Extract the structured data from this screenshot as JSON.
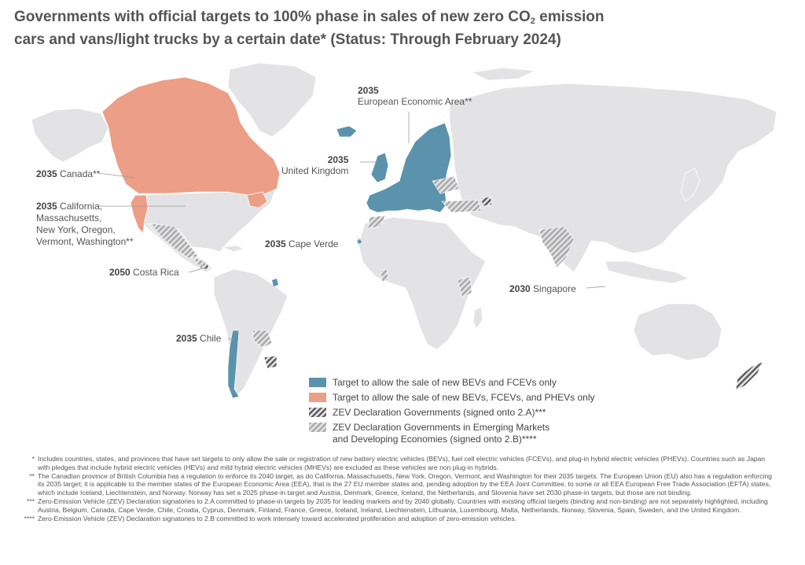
{
  "title": {
    "line1_a": "Governments with official targets to 100% phase in sales of new zero CO",
    "line1_sub": "2",
    "line1_b": " emission",
    "line2": "cars and vans/light trucks by a certain date* (Status: Through February 2024)"
  },
  "colors": {
    "land": "#e3e3e6",
    "bev_fcev": "#5b93ac",
    "phev": "#ec9e86",
    "zev_2a": "#5a5a5a",
    "zev_2b": "#a8a8a8"
  },
  "labels": {
    "eea": {
      "year": "2035",
      "name": "European Economic Area**"
    },
    "uk": {
      "year": "2035",
      "name": "United Kingdom"
    },
    "canada": {
      "year": "2035",
      "name": "Canada**"
    },
    "us_states": {
      "year": "2035",
      "line1": "California,",
      "line2": "Massachusetts,",
      "line3": "New York, Oregon,",
      "line4": "Vermont, Washington**"
    },
    "cape_verde": {
      "year": "2035",
      "name": "Cape Verde"
    },
    "costa_rica": {
      "year": "2050",
      "name": "Costa Rica"
    },
    "singapore": {
      "year": "2030",
      "name": "Singapore"
    },
    "chile": {
      "year": "2035",
      "name": "Chile"
    }
  },
  "legend": [
    {
      "label": "Target to allow the sale of new BEVs and FCEVs only",
      "icon": "solid-blue"
    },
    {
      "label": "Target to allow the sale of new BEVs, FCEVs, and PHEVs only",
      "icon": "solid-salmon"
    },
    {
      "label": "ZEV Declaration Governments (signed onto 2.A)***",
      "icon": "hatch-dark"
    },
    {
      "label": "ZEV Declaration Governments in Emerging Markets",
      "label2": "and Developing Economies (signed onto 2.B)****",
      "icon": "hatch-light"
    }
  ],
  "footnotes": [
    {
      "mark": "*",
      "text": "Includes countries, states, and provinces that have set targets to only allow the sale or registration of new battery electric vehicles (BEVs), fuel cell electric vehicles (FCEVs), and plug-in hybrid electric vehicles (PHEVs). Countries such as Japan with pledges that include hybrid electric vehicles (HEVs) and mild hybrid electric vehicles (MHEVs) are excluded as these vehicles are non plug-in hybrids."
    },
    {
      "mark": "**",
      "text": "The Canadian province of British Columbia has a regulation to enforce its 2040 target, as do California, Massachusetts, New York, Oregon, Vermont, and Washington for their 2035 targets. The European Union (EU) also has a regulation enforcing its 2035 target; it is applicable to the member states of the European Economic Area (EEA), that is the 27 EU member states and, pending adoption by the EEA Joint Committee, to some or all EEA European Free Trade Association (EFTA) states, which include Iceland, Liechtenstein, and Norway. Norway has set a 2025 phase-in target and Austria, Denmark, Greece, Iceland, the Netherlands, and Slovenia have set 2030 phase-in targets, but those are not binding."
    },
    {
      "mark": "***",
      "text": "Zero-Emission Vehicle (ZEV) Declaration signatories to 2.A committed to phase-in targets by 2035 for leading markets and by 2040 globally. Countries with existing official targets (binding and non-binding) are not separately highlighted, including Austria, Belgium, Canada, Cape Verde, Chile, Croatia, Cyprus, Denmark, Finland, France, Greece, Iceland, Ireland, Liechtenstein, Lithuania, Luxembourg, Malta, Netherlands, Norway, Slovenia, Spain, Sweden, and the United Kingdom."
    },
    {
      "mark": "****",
      "text": "Zero-Emission Vehicle (ZEV) Declaration signatories to 2.B committed to work intensely toward accelerated proliferation and adoption of zero-emission vehicles."
    }
  ]
}
